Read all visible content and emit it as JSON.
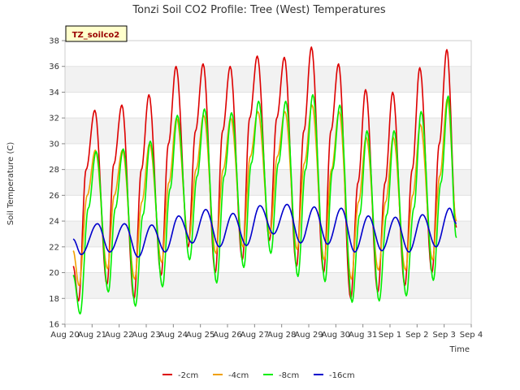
{
  "chart_data": {
    "type": "line",
    "title": "Tonzi Soil CO2 Profile: Tree (West) Temperatures",
    "badge": "TZ_soilco2",
    "xlabel": "Time",
    "ylabel": "Soil Temperature (C)",
    "ylim": [
      16,
      38
    ],
    "yticks": [
      16,
      18,
      20,
      22,
      24,
      26,
      28,
      30,
      32,
      34,
      36,
      38
    ],
    "xlim": [
      20,
      35
    ],
    "xtick_labels": [
      "Aug 20",
      "Aug 21",
      "Aug 22",
      "Aug 23",
      "Aug 24",
      "Aug 25",
      "Aug 26",
      "Aug 27",
      "Aug 28",
      "Aug 29",
      "Aug 30",
      "Aug 31",
      "Sep 1",
      "Sep 2",
      "Sep 3",
      "Sep 4"
    ],
    "grid": "horizontal bands",
    "legend_position": "bottom",
    "x_note": "x values are in days of August (32 = Sep 1, 33 = Sep 2, 34 = Sep 3)",
    "series": [
      {
        "name": "-2cm",
        "color": "#dd0000",
        "x": [
          20.3,
          20.5,
          20.78,
          21.1,
          21.55,
          21.8,
          22.1,
          22.55,
          22.82,
          23.1,
          23.55,
          23.82,
          24.1,
          24.55,
          24.82,
          25.1,
          25.55,
          25.82,
          26.1,
          26.55,
          26.82,
          27.1,
          27.55,
          27.82,
          28.1,
          28.55,
          28.82,
          29.1,
          29.55,
          29.82,
          30.1,
          30.55,
          30.82,
          31.1,
          31.55,
          31.82,
          32.1,
          32.55,
          32.82,
          33.1,
          33.55,
          33.82,
          34.1,
          34.45
        ],
        "y": [
          20.5,
          17.8,
          28.0,
          32.6,
          19.1,
          28.4,
          33.0,
          18.0,
          28.0,
          33.8,
          19.8,
          30.0,
          36.0,
          22.0,
          31.0,
          36.2,
          20.0,
          31.0,
          36.0,
          21.0,
          32.0,
          36.8,
          22.5,
          32.0,
          36.7,
          20.5,
          31.0,
          37.5,
          20.0,
          31.0,
          36.2,
          18.0,
          27.0,
          34.2,
          18.5,
          27.0,
          34.0,
          19.0,
          28.0,
          35.9,
          20.0,
          30.0,
          37.3,
          23.5
        ]
      },
      {
        "name": "-4cm",
        "color": "#f0a000",
        "x": [
          20.3,
          20.52,
          20.82,
          21.12,
          21.57,
          21.82,
          22.12,
          22.57,
          22.84,
          23.12,
          23.57,
          23.84,
          24.12,
          24.57,
          24.84,
          25.12,
          25.57,
          25.84,
          26.12,
          26.57,
          26.84,
          27.12,
          27.57,
          27.84,
          28.12,
          28.57,
          28.84,
          29.12,
          29.57,
          29.84,
          30.12,
          30.57,
          30.84,
          31.12,
          31.57,
          31.84,
          32.12,
          32.57,
          32.84,
          33.12,
          33.57,
          33.84,
          34.12,
          34.45
        ],
        "y": [
          21.7,
          19.0,
          26.0,
          29.5,
          20.3,
          26.0,
          29.5,
          19.5,
          25.5,
          30.0,
          20.8,
          27.0,
          32.0,
          22.5,
          28.0,
          32.2,
          21.5,
          28.0,
          32.0,
          22.0,
          29.0,
          32.5,
          23.0,
          29.0,
          32.5,
          21.8,
          28.5,
          33.0,
          21.0,
          28.0,
          32.5,
          19.5,
          25.5,
          30.5,
          20.2,
          25.5,
          30.5,
          20.2,
          26.0,
          31.5,
          21.0,
          27.5,
          33.5,
          24.0
        ]
      },
      {
        "name": "-8cm",
        "color": "#00ee00",
        "x": [
          20.3,
          20.56,
          20.86,
          21.15,
          21.6,
          21.86,
          22.15,
          22.6,
          22.88,
          23.15,
          23.6,
          23.88,
          24.15,
          24.6,
          24.88,
          25.15,
          25.6,
          25.88,
          26.15,
          26.6,
          26.88,
          27.15,
          27.6,
          27.88,
          28.15,
          28.6,
          28.88,
          29.15,
          29.6,
          29.88,
          30.15,
          30.6,
          30.88,
          31.15,
          31.6,
          31.88,
          32.15,
          32.6,
          32.88,
          33.15,
          33.6,
          33.88,
          34.15,
          34.45
        ],
        "y": [
          19.8,
          16.8,
          25.0,
          29.4,
          18.5,
          25.0,
          29.6,
          17.4,
          24.5,
          30.2,
          18.9,
          26.5,
          32.2,
          21.0,
          27.5,
          32.7,
          19.2,
          27.5,
          32.4,
          20.4,
          28.5,
          33.3,
          21.5,
          28.5,
          33.3,
          19.7,
          28.0,
          33.8,
          19.3,
          28.0,
          33.0,
          17.7,
          24.5,
          31.0,
          17.8,
          24.5,
          31.0,
          18.2,
          25.0,
          32.5,
          19.4,
          27.0,
          33.7,
          22.7
        ]
      },
      {
        "name": "-16cm",
        "color": "#0000cc",
        "x": [
          20.3,
          20.6,
          21.2,
          21.65,
          22.2,
          22.7,
          23.2,
          23.7,
          24.2,
          24.7,
          25.2,
          25.7,
          26.2,
          26.7,
          27.2,
          27.7,
          28.2,
          28.7,
          29.2,
          29.7,
          30.2,
          30.7,
          31.2,
          31.7,
          32.2,
          32.7,
          33.2,
          33.7,
          34.2,
          34.45
        ],
        "y": [
          22.6,
          21.4,
          23.8,
          21.6,
          23.8,
          21.2,
          23.7,
          21.6,
          24.4,
          22.3,
          24.9,
          22.0,
          24.6,
          22.1,
          25.2,
          23.0,
          25.3,
          22.3,
          25.1,
          22.2,
          25.0,
          21.6,
          24.4,
          21.7,
          24.3,
          21.6,
          24.5,
          22.0,
          25.0,
          23.8
        ]
      }
    ]
  }
}
